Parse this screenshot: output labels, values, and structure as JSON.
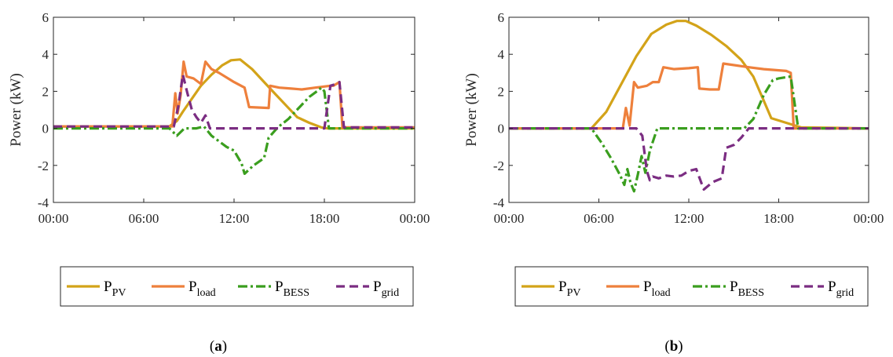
{
  "colors": {
    "PV": "#D3A319",
    "load": "#EE803C",
    "BESS": "#3A9E1E",
    "grid": "#7B2D82",
    "axis": "#262626"
  },
  "legend_items": [
    {
      "key": "PV",
      "base": "P",
      "sub": "PV",
      "dash": "solid"
    },
    {
      "key": "load",
      "base": "P",
      "sub": "load",
      "dash": "solid"
    },
    {
      "key": "BESS",
      "base": "P",
      "sub": "BESS",
      "dash": "dashdot"
    },
    {
      "key": "grid",
      "base": "P",
      "sub": "grid",
      "dash": "dashed"
    }
  ],
  "chart_data": [
    {
      "type": "line",
      "panel_label": "a",
      "ylabel": "Power (kW)",
      "xlim": [
        0,
        24
      ],
      "ylim": [
        -4,
        6
      ],
      "xticks": [
        0,
        6,
        12,
        18,
        24
      ],
      "xticklabels": [
        "00:00",
        "06:00",
        "12:00",
        "18:00",
        "00:00"
      ],
      "yticks": [
        -4,
        -2,
        0,
        2,
        4,
        6
      ],
      "yticklabels": [
        "-4",
        "-2",
        "0",
        "2",
        "4",
        "6"
      ],
      "grid": false,
      "legend_position": "bottom",
      "series": [
        {
          "key": "PV",
          "name": "P_PV",
          "x": [
            0,
            7.7,
            8.2,
            8.6,
            9.2,
            9.8,
            10.5,
            11.2,
            11.8,
            12.4,
            13.2,
            14.0,
            14.8,
            15.5,
            16.2,
            17.0,
            17.8,
            18.2,
            24
          ],
          "y": [
            0.1,
            0.1,
            0.4,
            0.9,
            1.6,
            2.3,
            2.9,
            3.4,
            3.68,
            3.72,
            3.2,
            2.5,
            1.8,
            1.2,
            0.6,
            0.3,
            0.05,
            0.0,
            0.0
          ]
        },
        {
          "key": "load",
          "name": "P_load",
          "x": [
            0,
            7.9,
            8.1,
            8.25,
            8.45,
            8.65,
            8.85,
            9.3,
            9.8,
            10.1,
            10.5,
            11.0,
            11.6,
            12.0,
            12.7,
            13.0,
            14.3,
            14.4,
            15.0,
            15.8,
            16.5,
            17.4,
            18.4,
            18.6,
            19.0,
            19.2,
            24
          ],
          "y": [
            0.1,
            0.1,
            1.9,
            0.8,
            1.8,
            3.6,
            2.8,
            2.7,
            2.4,
            3.6,
            3.2,
            3.0,
            2.7,
            2.5,
            2.2,
            1.15,
            1.1,
            2.3,
            2.2,
            2.15,
            2.1,
            2.2,
            2.3,
            2.3,
            2.5,
            0.05,
            0.05
          ]
        },
        {
          "key": "BESS",
          "name": "P_BESS",
          "x": [
            0,
            7.7,
            8.2,
            8.7,
            9.5,
            10.0,
            10.5,
            11.5,
            12.0,
            12.5,
            12.7,
            13.3,
            14.0,
            14.3,
            14.9,
            15.6,
            16.3,
            17.0,
            17.5,
            17.8,
            18.0,
            18.3,
            24
          ],
          "y": [
            0.0,
            0.0,
            -0.4,
            0.0,
            0.0,
            0.1,
            -0.4,
            -1.0,
            -1.2,
            -1.9,
            -2.45,
            -2.0,
            -1.6,
            -0.5,
            0.05,
            0.5,
            1.1,
            1.7,
            2.0,
            2.2,
            2.0,
            0.0,
            0.0
          ]
        },
        {
          "key": "grid",
          "name": "P_grid",
          "x": [
            0,
            8.0,
            8.3,
            8.6,
            8.9,
            9.2,
            9.5,
            9.8,
            10.1,
            10.4,
            10.7,
            17.5,
            18.0,
            18.4,
            18.8,
            19.0,
            19.3,
            24
          ],
          "y": [
            0.1,
            0.1,
            1.2,
            2.9,
            1.9,
            1.0,
            0.6,
            0.3,
            0.7,
            0.0,
            0.0,
            0.0,
            0.0,
            2.3,
            2.4,
            2.5,
            0.05,
            0.05
          ]
        }
      ]
    },
    {
      "type": "line",
      "panel_label": "b",
      "ylabel": "Power (kW)",
      "xlim": [
        0,
        24
      ],
      "ylim": [
        -4,
        6
      ],
      "xticks": [
        0,
        6,
        12,
        18,
        24
      ],
      "xticklabels": [
        "00:00",
        "06:00",
        "12:00",
        "18:00",
        "00:00"
      ],
      "yticks": [
        -4,
        -2,
        0,
        2,
        4,
        6
      ],
      "yticklabels": [
        "-4",
        "-2",
        "0",
        "2",
        "4",
        "6"
      ],
      "grid": false,
      "legend_position": "bottom",
      "series": [
        {
          "key": "PV",
          "name": "P_PV",
          "x": [
            0,
            5.5,
            6.5,
            7.5,
            8.5,
            9.5,
            10.5,
            11.2,
            11.8,
            12.5,
            13.5,
            14.5,
            15.5,
            16.3,
            17.0,
            17.5,
            18.5,
            19.5,
            24
          ],
          "y": [
            0.0,
            0.0,
            0.9,
            2.4,
            3.9,
            5.1,
            5.6,
            5.8,
            5.8,
            5.55,
            5.05,
            4.45,
            3.7,
            2.8,
            1.5,
            0.55,
            0.3,
            0.05,
            0.0
          ]
        },
        {
          "key": "load",
          "name": "P_load",
          "x": [
            0,
            7.6,
            7.8,
            8.05,
            8.35,
            8.6,
            9.2,
            9.6,
            10.0,
            10.3,
            11.0,
            12.0,
            12.6,
            12.7,
            13.4,
            14.0,
            14.3,
            16.0,
            17.0,
            18.5,
            18.8,
            19.0,
            24
          ],
          "y": [
            0.0,
            0.0,
            1.1,
            0.15,
            2.5,
            2.2,
            2.3,
            2.5,
            2.5,
            3.3,
            3.2,
            3.25,
            3.3,
            2.15,
            2.1,
            2.1,
            3.5,
            3.3,
            3.2,
            3.1,
            3.0,
            0.0,
            0.0
          ]
        },
        {
          "key": "BESS",
          "name": "P_BESS",
          "x": [
            0,
            5.5,
            6.2,
            6.8,
            7.4,
            7.7,
            7.9,
            8.1,
            8.35,
            8.6,
            8.85,
            9.1,
            9.4,
            9.9,
            10.3,
            12.0,
            15.7,
            16.3,
            17.0,
            17.6,
            18.0,
            18.8,
            19.3,
            24
          ],
          "y": [
            0.0,
            0.0,
            -0.8,
            -1.6,
            -2.5,
            -3.05,
            -2.2,
            -2.9,
            -3.4,
            -2.5,
            -1.5,
            -2.4,
            -1.2,
            0.0,
            0.0,
            0.0,
            0.0,
            0.5,
            1.8,
            2.6,
            2.7,
            2.8,
            0.0,
            0.0
          ]
        },
        {
          "key": "grid",
          "name": "P_grid",
          "x": [
            0,
            8.5,
            8.9,
            9.2,
            9.4,
            9.6,
            10.0,
            10.5,
            11.0,
            11.5,
            12.0,
            12.5,
            13.0,
            13.6,
            14.2,
            14.5,
            15.0,
            15.5,
            16.0,
            18.5,
            18.8,
            19.2,
            24
          ],
          "y": [
            0.0,
            0.0,
            -0.4,
            -2.3,
            -2.8,
            -2.6,
            -2.7,
            -2.55,
            -2.6,
            -2.55,
            -2.3,
            -2.2,
            -3.3,
            -2.9,
            -2.7,
            -1.05,
            -0.9,
            -0.5,
            0.0,
            0.0,
            0.0,
            0.0,
            0.0
          ]
        }
      ]
    }
  ]
}
